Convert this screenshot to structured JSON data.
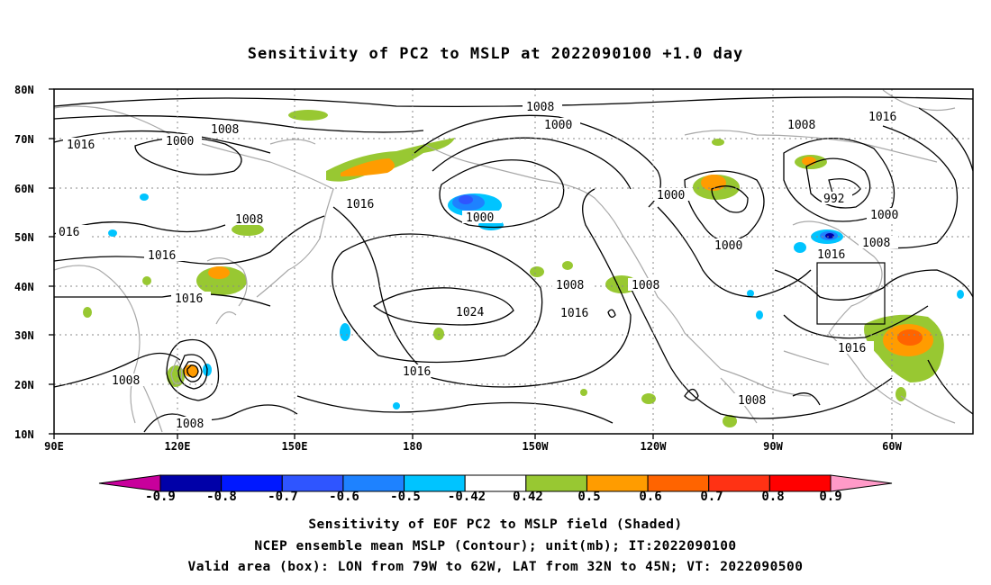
{
  "title": "Sensitivity of PC2 to MSLP at 2022090100 +1.0 day",
  "lat_labels": [
    "80N",
    "70N",
    "60N",
    "50N",
    "40N",
    "30N",
    "20N",
    "10N"
  ],
  "lon_labels": [
    "90E",
    "120E",
    "150E",
    "180",
    "150W",
    "120W",
    "90W",
    "60W"
  ],
  "contour_labels": [
    "1008",
    "1016",
    "1000",
    "1008",
    "1000",
    "1008",
    "1016",
    "1016",
    "1000",
    "016",
    "1008",
    "1016",
    "1016",
    "1000",
    "992",
    "1000",
    "1008",
    "1000",
    "1016",
    "1008",
    "1008",
    "1016",
    "1024",
    "1016",
    "1016",
    "1008",
    "1008",
    "1008"
  ],
  "colorbar": {
    "labels": [
      "-0.9",
      "-0.8",
      "-0.7",
      "-0.6",
      "-0.5",
      "-0.42",
      "0.42",
      "0.5",
      "0.6",
      "0.7",
      "0.8",
      "0.9"
    ],
    "colors": [
      "#0000a8",
      "#0018ff",
      "#2f55ff",
      "#1e82ff",
      "#00c4ff",
      "#ffffff",
      "#98c832",
      "#ff9c00",
      "#ff6400",
      "#ff3214",
      "#ff0000"
    ],
    "low_end_color": "#c8009c",
    "high_end_color": "#ff9ac8"
  },
  "captions": {
    "line1": "Sensitivity of EOF PC2 to MSLP field (Shaded)",
    "line2": "NCEP ensemble mean MSLP (Contour); unit(mb); IT:2022090100",
    "line3": "Valid area (box): LON from 79W to 62W, LAT from 32N to 45N; VT: 2022090500"
  },
  "map": {
    "lon_range": [
      "90E",
      "50W"
    ],
    "lat_range": [
      "10N",
      "80N"
    ],
    "contour_interval_mb": 8,
    "valid_box": {
      "lon": [
        "79W",
        "62W"
      ],
      "lat": [
        "32N",
        "45N"
      ]
    }
  }
}
